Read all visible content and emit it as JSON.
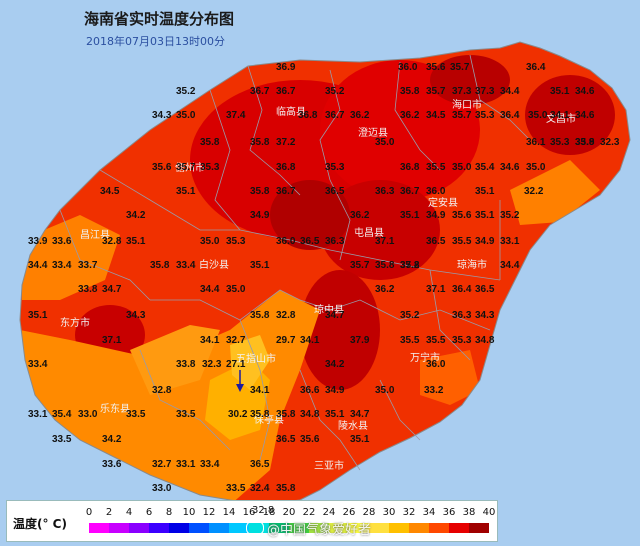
{
  "title": "海南省实时温度分布图",
  "subtitle": "2018年07月03日13时00分",
  "cities": [
    {
      "name": "临高县"
    },
    {
      "name": "澄迈县"
    },
    {
      "name": "海口市"
    },
    {
      "name": "文昌市"
    },
    {
      "name": "儋州市"
    },
    {
      "name": "定安县"
    },
    {
      "name": "昌江县"
    },
    {
      "name": "屯昌县"
    },
    {
      "name": "白沙县"
    },
    {
      "name": "琼海市"
    },
    {
      "name": "东方市"
    },
    {
      "name": "琼中县"
    },
    {
      "name": "五指山市"
    },
    {
      "name": "万宁市"
    },
    {
      "name": "乐东县"
    },
    {
      "name": "保亭县"
    },
    {
      "name": "陵水县"
    },
    {
      "name": "三亚市"
    }
  ],
  "temperatures": [
    "36.9",
    "35.2",
    "36.7",
    "36.7",
    "35.2",
    "36.0",
    "35.6",
    "35.7",
    "36.4",
    "37.3",
    "35.8",
    "35.7",
    "37.3",
    "34.4",
    "35.1",
    "34.6",
    "34.3",
    "35.0",
    "37.4",
    "36.8",
    "36.7",
    "36.2",
    "36.2",
    "34.5",
    "35.7",
    "35.3",
    "36.4",
    "35.0",
    "34.1",
    "34.6",
    "35.8",
    "35.8",
    "37.2",
    "35.0",
    "36.1",
    "35.3",
    "35.8",
    "33.9",
    "32.3",
    "35.6",
    "35.7",
    "35.3",
    "36.8",
    "35.3",
    "36.8",
    "35.5",
    "35.0",
    "35.4",
    "34.6",
    "35.0",
    "34.5",
    "35.1",
    "35.8",
    "36.7",
    "36.5",
    "36.3",
    "36.7",
    "36.0",
    "35.1",
    "32.2",
    "34.2",
    "34.9",
    "36.2",
    "35.1",
    "34.9",
    "35.6",
    "35.1",
    "35.2",
    "33.9",
    "33.6",
    "32.8",
    "35.1",
    "35.0",
    "35.3",
    "36.0",
    "36.5",
    "36.3",
    "37.1",
    "36.5",
    "35.5",
    "34.9",
    "33.1",
    "34.4",
    "33.4",
    "33.7",
    "35.8",
    "33.4",
    "35.1",
    "35.7",
    "35.8",
    "37.2",
    "35.8",
    "34.4",
    "33.8",
    "34.7",
    "34.4",
    "35.0",
    "36.2",
    "37.1",
    "36.4",
    "36.5",
    "35.1",
    "34.3",
    "35.8",
    "32.8",
    "34.7",
    "35.2",
    "36.3",
    "34.3",
    "37.1",
    "34.1",
    "32.7",
    "29.7",
    "34.1",
    "37.9",
    "35.5",
    "35.5",
    "35.3",
    "34.8",
    "33.4",
    "33.8",
    "32.3",
    "27.1",
    "34.2",
    "36.0",
    "32.8",
    "34.1",
    "36.6",
    "34.9",
    "35.0",
    "33.2",
    "33.1",
    "35.4",
    "33.0",
    "33.5",
    "33.5",
    "30.2",
    "35.8",
    "35.8",
    "34.8",
    "35.1",
    "34.7",
    "33.5",
    "34.2",
    "36.5",
    "35.6",
    "35.1",
    "33.6",
    "32.7",
    "33.1",
    "33.4",
    "36.5",
    "33.0",
    "33.5",
    "32.4",
    "35.8"
  ],
  "legend": {
    "title": "温度(° C)",
    "ticks": [
      "0",
      "2",
      "4",
      "6",
      "8",
      "10",
      "12",
      "14",
      "16",
      "18",
      "20",
      "22",
      "24",
      "26",
      "28",
      "30",
      "32",
      "34",
      "36",
      "38",
      "40"
    ],
    "colors": [
      "#ff00ff",
      "#c800ff",
      "#8a00ff",
      "#3c00ff",
      "#0000e6",
      "#0050ff",
      "#0090ff",
      "#00c8ff",
      "#00e0e0",
      "#00c070",
      "#40d040",
      "#a0e040",
      "#e0f040",
      "#ffff40",
      "#ffe040",
      "#ffc000",
      "#ff8800",
      "#ff4800",
      "#e60000",
      "#a00000"
    ]
  },
  "watermark": "@中国气象爱好者",
  "watermark_date": "32.8"
}
